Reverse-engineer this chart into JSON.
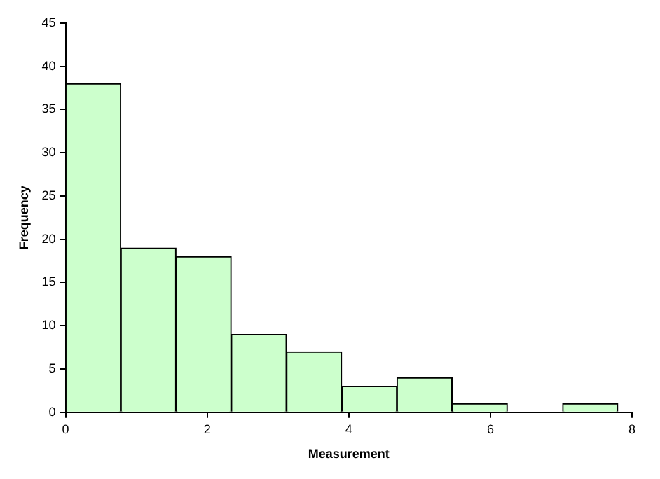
{
  "chart_data": {
    "type": "histogram",
    "xlabel": "Measurement",
    "ylabel": "Frequency",
    "bins": [
      0,
      0.78,
      1.56,
      2.34,
      3.12,
      3.9,
      4.68,
      5.46,
      6.24,
      7.02,
      7.8
    ],
    "values": [
      38,
      19,
      18,
      9,
      7,
      3,
      4,
      1,
      0,
      1
    ],
    "color": "#ccffcc",
    "xlim": [
      0,
      8
    ],
    "xticks": [
      0,
      2,
      4,
      6,
      8
    ],
    "ylim": [
      0,
      45
    ],
    "yticks": [
      0,
      5,
      10,
      15,
      20,
      25,
      30,
      35,
      40,
      45
    ],
    "grid": false,
    "legend": false
  }
}
